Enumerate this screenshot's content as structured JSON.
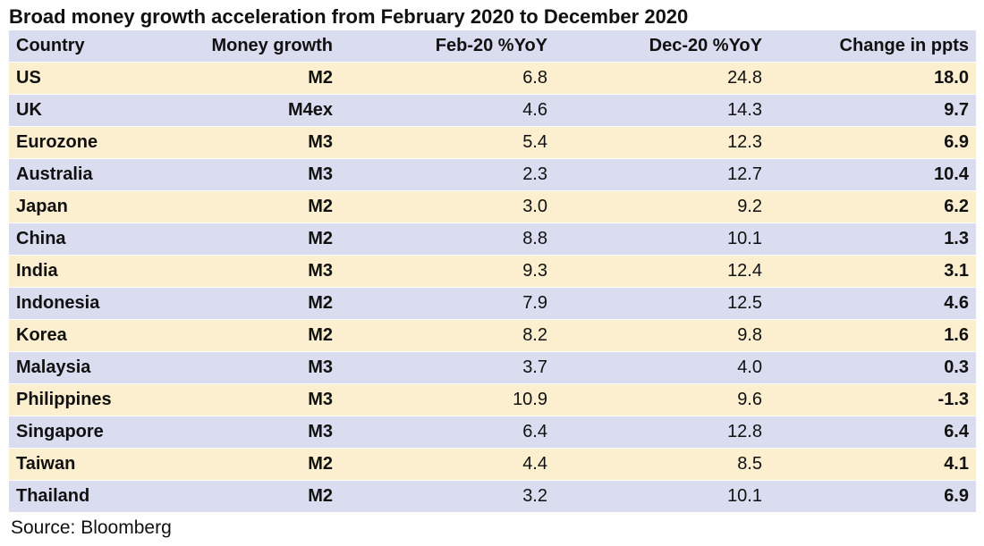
{
  "title": "Broad money growth acceleration from February 2020 to December 2020",
  "source": "Source: Bloomberg",
  "colors": {
    "header_row": "#d9ddef",
    "band_light": "#fcefcf",
    "band_blue": "#d9ddef"
  },
  "chart_data": {
    "type": "table",
    "title": "Broad money growth acceleration from February 2020 to December 2020",
    "columns": [
      "Country",
      "Money growth",
      "Feb-20 %YoY",
      "Dec-20 %YoY",
      "Change in ppts"
    ],
    "rows": [
      [
        "US",
        "M2",
        "6.8",
        "24.8",
        "18.0"
      ],
      [
        "UK",
        "M4ex",
        "4.6",
        "14.3",
        "9.7"
      ],
      [
        "Eurozone",
        "M3",
        "5.4",
        "12.3",
        "6.9"
      ],
      [
        "Australia",
        "M3",
        "2.3",
        "12.7",
        "10.4"
      ],
      [
        "Japan",
        "M2",
        "3.0",
        "9.2",
        "6.2"
      ],
      [
        "China",
        "M2",
        "8.8",
        "10.1",
        "1.3"
      ],
      [
        "India",
        "M3",
        "9.3",
        "12.4",
        "3.1"
      ],
      [
        "Indonesia",
        "M2",
        "7.9",
        "12.5",
        "4.6"
      ],
      [
        "Korea",
        "M2",
        "8.2",
        "9.8",
        "1.6"
      ],
      [
        "Malaysia",
        "M3",
        "3.7",
        "4.0",
        "0.3"
      ],
      [
        "Philippines",
        "M3",
        "10.9",
        "9.6",
        "-1.3"
      ],
      [
        "Singapore",
        "M3",
        "6.4",
        "12.8",
        "6.4"
      ],
      [
        "Taiwan",
        "M2",
        "4.4",
        "8.5",
        "4.1"
      ],
      [
        "Thailand",
        "M2",
        "3.2",
        "10.1",
        "6.9"
      ]
    ],
    "source": "Source: Bloomberg"
  }
}
